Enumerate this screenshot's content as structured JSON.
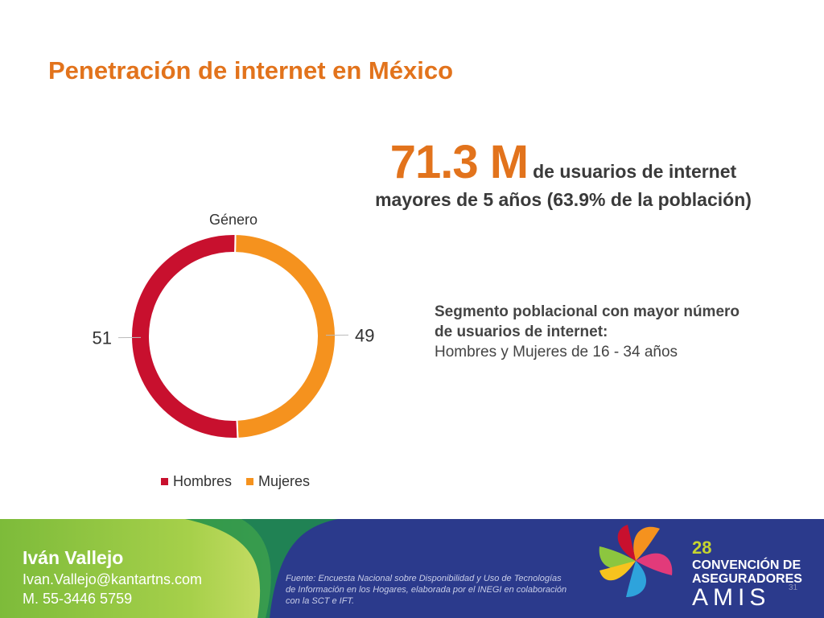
{
  "slide": {
    "title": "Penetración de internet en México"
  },
  "stat": {
    "value": "71.3 M",
    "line1_suffix": "de usuarios de internet",
    "line2": "mayores de 5 años (63.9% de la población)"
  },
  "segment": {
    "heading_line1": "Segmento poblacional con mayor número",
    "heading_line2": "de usuarios de internet:",
    "detail": "Hombres y Mujeres de 16 - 34 años"
  },
  "chart_data": {
    "type": "pie",
    "title": "Género",
    "categories": [
      "Hombres",
      "Mujeres"
    ],
    "values": [
      51,
      49
    ],
    "colors": [
      "#c8102e",
      "#f5921e"
    ],
    "legend_position": "bottom",
    "donut": true
  },
  "footer": {
    "name": "Iván Vallejo",
    "email": "Ivan.Vallejo@kantartns.com",
    "phone": "M. 55-3446 5759",
    "source": "Fuente: Encuesta Nacional sobre Disponibilidad y Uso de Tecnologías de Información en los Hogares, elaborada por el INEGI en colaboración con la SCT e IFT.",
    "brand_number": "28",
    "brand_line1": "CONVENCIÓN DE",
    "brand_line2": "ASEGURADORES",
    "brand_name": "AMIS",
    "page_number": "31"
  },
  "colors": {
    "accent": "#e2731c",
    "footer_blue": "#2b3a8c",
    "footer_green": "#8cc63f"
  }
}
